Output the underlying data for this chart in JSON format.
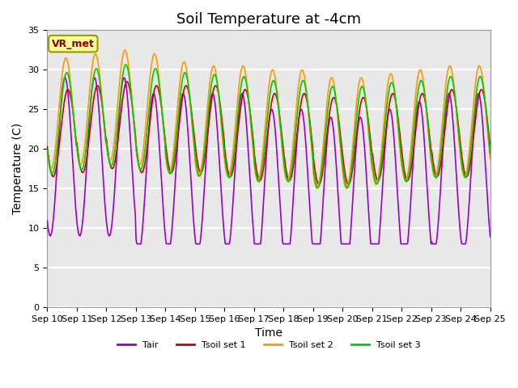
{
  "title": "Soil Temperature at -4cm",
  "xlabel": "Time",
  "ylabel": "Temperature (C)",
  "ylim": [
    0,
    35
  ],
  "yticks": [
    0,
    5,
    10,
    15,
    20,
    25,
    30,
    35
  ],
  "xtick_labels": [
    "Sep 10",
    "Sep 11",
    "Sep 12",
    "Sep 13",
    "Sep 14",
    "Sep 15",
    "Sep 16",
    "Sep 17",
    "Sep 18",
    "Sep 19",
    "Sep 20",
    "Sep 21",
    "Sep 22",
    "Sep 23",
    "Sep 24",
    "Sep 25"
  ],
  "annotation_text": "VR_met",
  "annotation_color": "#8B0000",
  "annotation_bg": "#FFFF99",
  "annotation_edge": "#999900",
  "colors": {
    "Tair": "#9900CC",
    "Tsoil1": "#CC0000",
    "Tsoil2": "#FF9900",
    "Tsoil3": "#00CC00"
  },
  "legend_labels": [
    "Tair",
    "Tsoil set 1",
    "Tsoil set 2",
    "Tsoil set 3"
  ],
  "plot_bg": "#E8E8E8",
  "grid_color": "#FFFFFF",
  "title_fontsize": 13,
  "axis_fontsize": 10,
  "tick_fontsize": 8,
  "tair_base": 19,
  "tair_amp": 10,
  "tsoil1_base": 22,
  "tsoil1_amp": 5.5,
  "tsoil2_base": 23.5,
  "tsoil2_amp": 7.0,
  "n_days": 15,
  "pts_per_day": 48
}
